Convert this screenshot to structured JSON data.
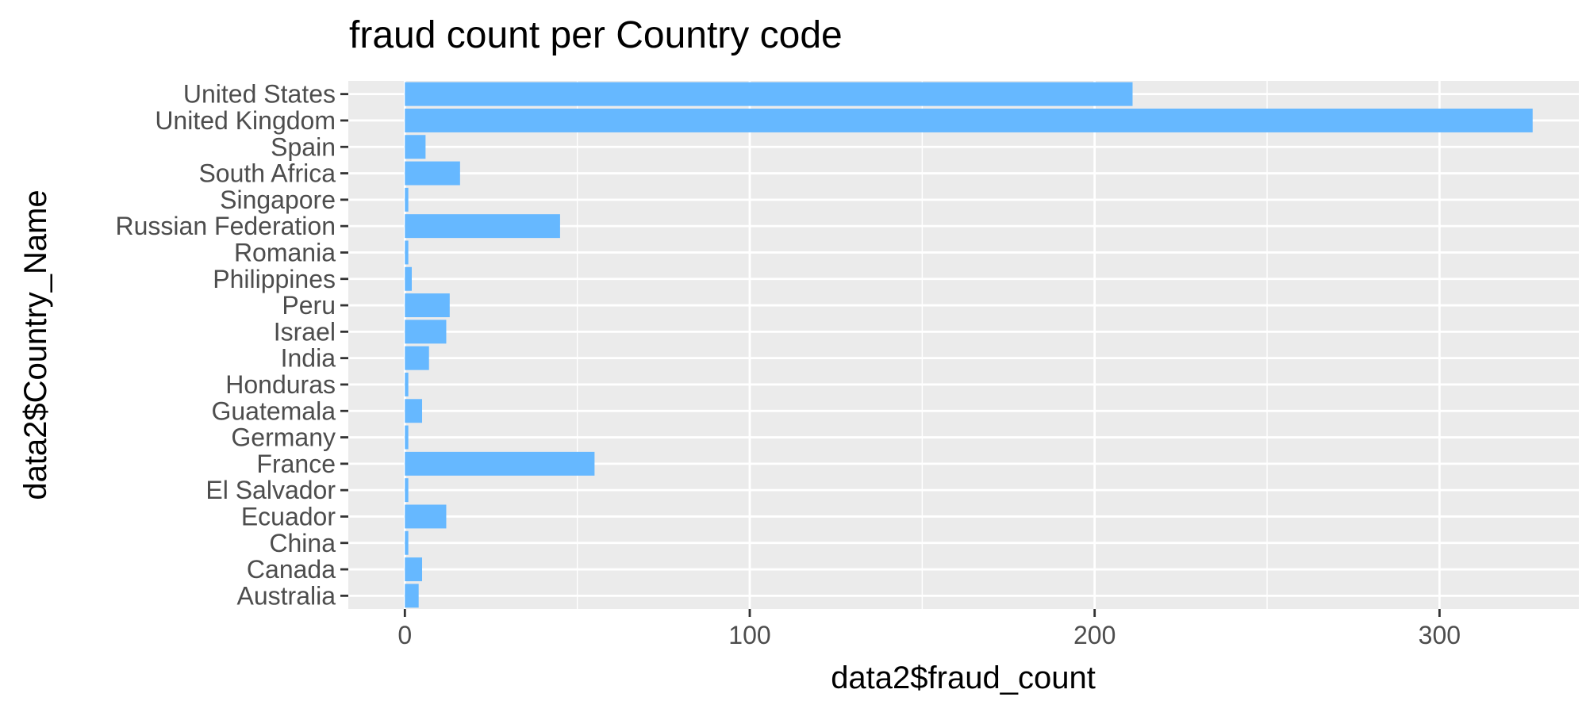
{
  "chart_data": {
    "type": "bar",
    "orientation": "horizontal",
    "title": "fraud count per Country code",
    "xlabel": "data2$fraud_count",
    "ylabel": "data2$Country_Name",
    "xlim": [
      -16.4,
      340.4
    ],
    "x_ticks": [
      0,
      100,
      200,
      300
    ],
    "categories": [
      "United States",
      "United Kingdom",
      "Spain",
      "South Africa",
      "Singapore",
      "Russian Federation",
      "Romania",
      "Philippines",
      "Peru",
      "Israel",
      "India",
      "Honduras",
      "Guatemala",
      "Germany",
      "France",
      "El Salvador",
      "Ecuador",
      "China",
      "Canada",
      "Australia"
    ],
    "values": [
      211,
      327,
      6,
      16,
      1,
      45,
      1,
      2,
      13,
      12,
      7,
      1,
      5,
      1,
      55,
      1,
      12,
      1,
      5,
      4
    ],
    "bar_color": "#66b8ff",
    "panel_color": "#ebebeb",
    "grid": true,
    "legend": "none"
  }
}
